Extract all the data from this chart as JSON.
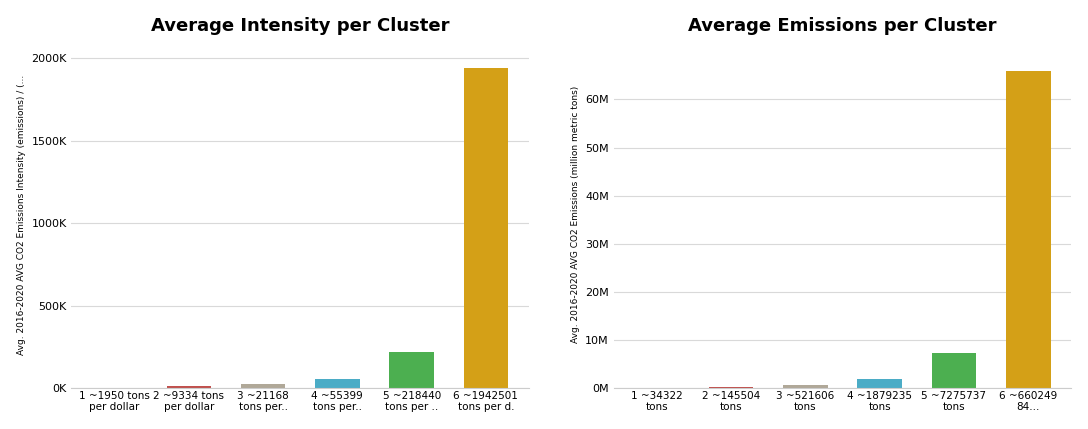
{
  "left_title": "Average Intensity per Cluster",
  "right_title": "Average Emissions per Cluster",
  "left_ylabel": "Avg. 2016-2020 AVG CO2 Emissions Intensity (emissions) / (...",
  "right_ylabel": "Avg. 2016-2020 AVG CO2 Emissions (million metric tons)",
  "clusters": [
    1,
    2,
    3,
    4,
    5,
    6
  ],
  "intensity_values": [
    1950,
    9334,
    21168,
    55399,
    218440,
    1942501
  ],
  "emissions_values": [
    34322,
    145504,
    521606,
    1879235,
    7275737,
    66024984
  ],
  "intensity_xlabels": [
    "1 ~1950 tons\nper dollar",
    "2 ~9334 tons\nper dollar",
    "3 ~21168\ntons per..",
    "4 ~55399\ntons per..",
    "5 ~218440\ntons per ..",
    "6 ~1942501\ntons per d."
  ],
  "emissions_xlabels": [
    "1 ~34322\ntons",
    "2 ~145504\ntons",
    "3 ~521606\ntons",
    "4 ~1879235\ntons",
    "5 ~7275737\ntons",
    "6 ~660249\n84..."
  ],
  "bar_colors": [
    "#5b9bd5",
    "#c0504d",
    "#b0a898",
    "#4bacc6",
    "#4caf50",
    "#d4a017"
  ],
  "background_color": "#ffffff",
  "grid_color": "#d9d9d9",
  "tick_label_fontsize": 7.5,
  "title_fontsize": 13,
  "intensity_yticks": [
    0,
    500000,
    1000000,
    1500000,
    2000000
  ],
  "emissions_yticks": [
    0,
    10000000,
    20000000,
    30000000,
    40000000,
    50000000,
    60000000
  ],
  "intensity_ylim": [
    0,
    2100000
  ],
  "emissions_ylim": [
    0,
    72000000
  ]
}
